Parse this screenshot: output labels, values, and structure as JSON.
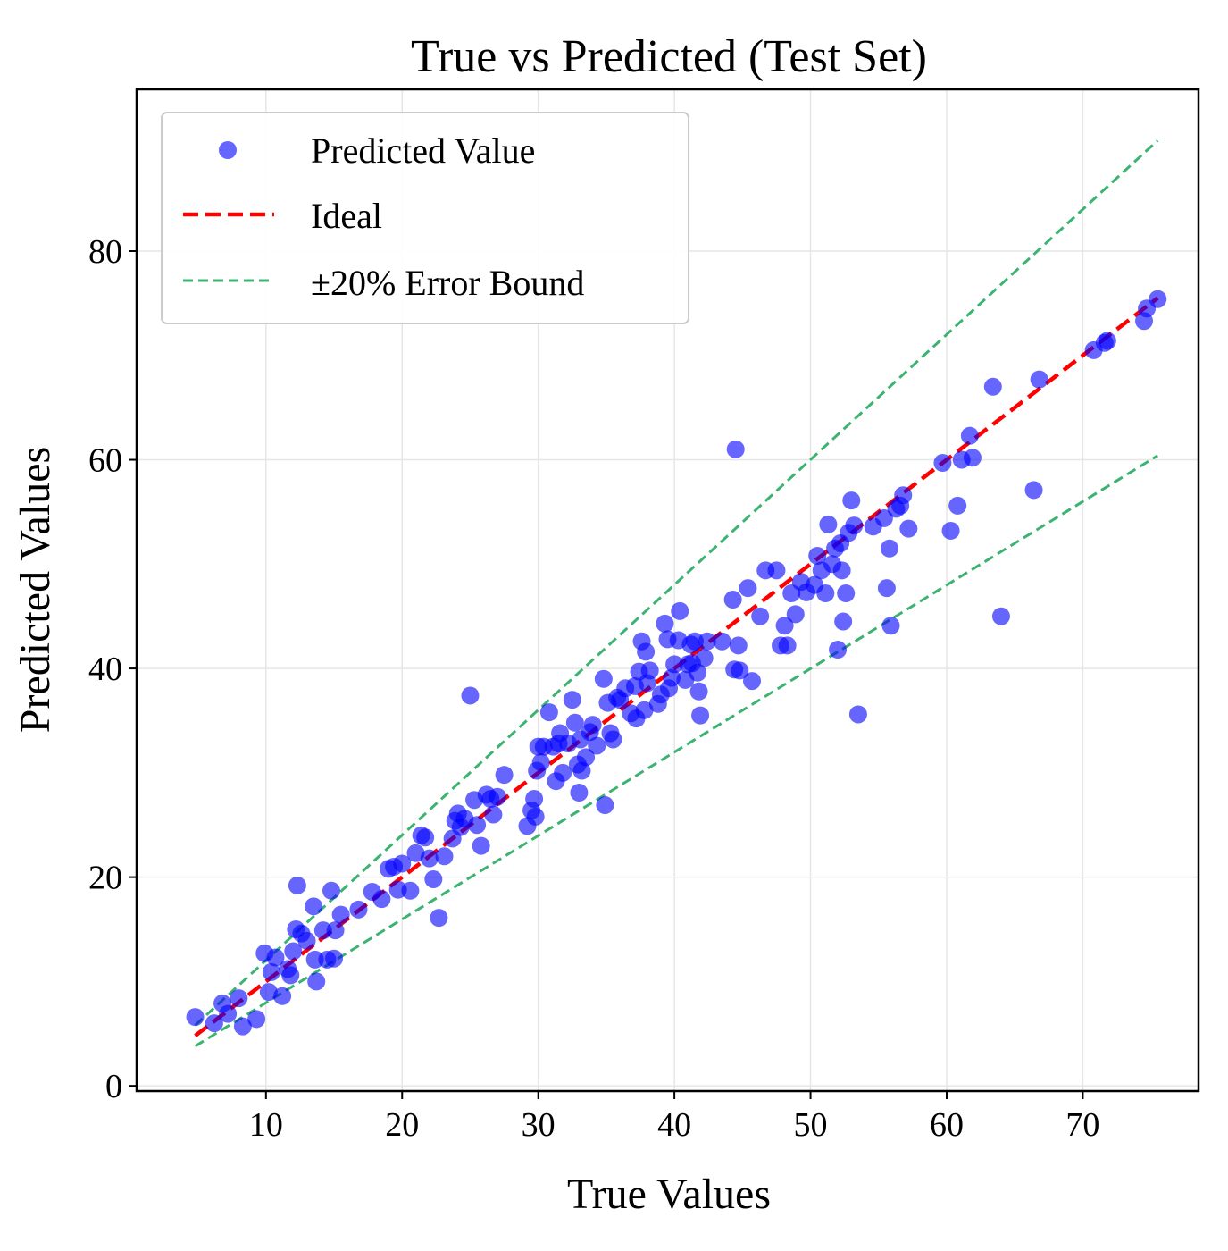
{
  "chart_data": {
    "type": "scatter",
    "title": "True vs Predicted (Test Set)",
    "xlabel": "True Values",
    "ylabel": "Predicted Values",
    "xlim": [
      0.5,
      78.5
    ],
    "ylim": [
      -0.5,
      95.5
    ],
    "xticks": [
      10,
      20,
      30,
      40,
      50,
      60,
      70
    ],
    "yticks": [
      0,
      20,
      40,
      60,
      80
    ],
    "grid": true,
    "legend_position": "top-left",
    "legend": [
      "Predicted Value",
      "Ideal",
      "±20% Error Bound"
    ],
    "colors": {
      "points": "#0000ff",
      "ideal": "#ff0000",
      "bound": "#3cb371",
      "grid": "#e6e6e6"
    },
    "ideal_line": {
      "x": [
        4.8,
        75.5
      ],
      "y": [
        4.8,
        75.5
      ]
    },
    "upper_bound": {
      "x": [
        4.8,
        75.5
      ],
      "y": [
        5.8,
        90.6
      ]
    },
    "lower_bound": {
      "x": [
        4.8,
        75.5
      ],
      "y": [
        3.8,
        60.4
      ]
    },
    "series": [
      {
        "name": "Predicted Value",
        "points": [
          [
            4.8,
            6.6
          ],
          [
            6.2,
            6.0
          ],
          [
            6.8,
            7.9
          ],
          [
            7.2,
            6.9
          ],
          [
            8.0,
            8.4
          ],
          [
            8.3,
            5.7
          ],
          [
            9.3,
            6.4
          ],
          [
            9.9,
            12.7
          ],
          [
            10.2,
            9.0
          ],
          [
            10.4,
            10.9
          ],
          [
            10.7,
            12.3
          ],
          [
            11.2,
            8.6
          ],
          [
            11.6,
            11.2
          ],
          [
            11.8,
            10.6
          ],
          [
            12.0,
            12.9
          ],
          [
            12.2,
            15.0
          ],
          [
            12.3,
            19.2
          ],
          [
            12.6,
            14.6
          ],
          [
            13.0,
            13.9
          ],
          [
            13.5,
            17.2
          ],
          [
            13.6,
            12.1
          ],
          [
            13.7,
            10.0
          ],
          [
            14.2,
            14.9
          ],
          [
            14.5,
            12.1
          ],
          [
            14.8,
            18.7
          ],
          [
            15.0,
            12.2
          ],
          [
            15.1,
            14.9
          ],
          [
            15.5,
            16.4
          ],
          [
            16.8,
            16.9
          ],
          [
            17.8,
            18.6
          ],
          [
            18.5,
            17.9
          ],
          [
            19.0,
            20.8
          ],
          [
            19.4,
            21.0
          ],
          [
            19.7,
            18.8
          ],
          [
            20.0,
            21.3
          ],
          [
            20.6,
            18.7
          ],
          [
            21.0,
            22.3
          ],
          [
            21.4,
            24.0
          ],
          [
            21.7,
            23.8
          ],
          [
            22.0,
            21.8
          ],
          [
            22.3,
            19.8
          ],
          [
            22.7,
            16.1
          ],
          [
            23.1,
            22.0
          ],
          [
            23.7,
            23.7
          ],
          [
            23.9,
            25.4
          ],
          [
            24.1,
            26.1
          ],
          [
            24.3,
            24.8
          ],
          [
            24.6,
            25.6
          ],
          [
            25.0,
            37.4
          ],
          [
            25.3,
            27.4
          ],
          [
            25.5,
            25.0
          ],
          [
            25.8,
            23.0
          ],
          [
            26.2,
            27.9
          ],
          [
            26.5,
            27.5
          ],
          [
            26.7,
            26.0
          ],
          [
            27.0,
            27.7
          ],
          [
            27.5,
            29.8
          ],
          [
            29.2,
            24.9
          ],
          [
            29.5,
            26.4
          ],
          [
            29.7,
            27.5
          ],
          [
            29.8,
            25.8
          ],
          [
            29.9,
            30.2
          ],
          [
            30.0,
            32.5
          ],
          [
            30.2,
            31.0
          ],
          [
            30.4,
            32.5
          ],
          [
            30.8,
            35.8
          ],
          [
            31.1,
            32.5
          ],
          [
            31.3,
            29.2
          ],
          [
            31.5,
            32.8
          ],
          [
            31.6,
            33.8
          ],
          [
            31.8,
            30.0
          ],
          [
            32.2,
            32.8
          ],
          [
            32.5,
            37.0
          ],
          [
            32.7,
            34.8
          ],
          [
            32.9,
            30.8
          ],
          [
            33.0,
            28.1
          ],
          [
            33.1,
            33.2
          ],
          [
            33.2,
            30.2
          ],
          [
            33.5,
            31.5
          ],
          [
            33.8,
            33.9
          ],
          [
            34.0,
            34.6
          ],
          [
            34.3,
            32.6
          ],
          [
            34.8,
            39.0
          ],
          [
            34.9,
            26.9
          ],
          [
            35.1,
            36.7
          ],
          [
            35.3,
            33.8
          ],
          [
            35.5,
            33.2
          ],
          [
            35.8,
            37.2
          ],
          [
            36.0,
            37.0
          ],
          [
            36.4,
            38.1
          ],
          [
            36.8,
            35.7
          ],
          [
            37.1,
            38.3
          ],
          [
            37.2,
            35.2
          ],
          [
            37.4,
            39.7
          ],
          [
            37.6,
            42.6
          ],
          [
            37.8,
            36.0
          ],
          [
            37.9,
            41.6
          ],
          [
            38.0,
            38.6
          ],
          [
            38.2,
            39.8
          ],
          [
            38.8,
            36.6
          ],
          [
            39.0,
            37.5
          ],
          [
            39.3,
            44.3
          ],
          [
            39.5,
            42.8
          ],
          [
            39.6,
            38.1
          ],
          [
            39.8,
            39.1
          ],
          [
            40.0,
            40.4
          ],
          [
            40.3,
            42.7
          ],
          [
            40.4,
            45.5
          ],
          [
            40.8,
            38.9
          ],
          [
            41.0,
            40.4
          ],
          [
            41.2,
            42.3
          ],
          [
            41.3,
            40.5
          ],
          [
            41.5,
            42.6
          ],
          [
            41.7,
            39.6
          ],
          [
            41.8,
            37.8
          ],
          [
            41.9,
            35.5
          ],
          [
            42.2,
            41.0
          ],
          [
            42.4,
            42.6
          ],
          [
            43.5,
            42.6
          ],
          [
            44.3,
            46.6
          ],
          [
            44.4,
            39.9
          ],
          [
            44.5,
            61.0
          ],
          [
            44.7,
            42.2
          ],
          [
            44.8,
            39.8
          ],
          [
            45.4,
            47.7
          ],
          [
            45.7,
            38.8
          ],
          [
            46.3,
            45.0
          ],
          [
            46.7,
            49.4
          ],
          [
            47.5,
            49.4
          ],
          [
            47.8,
            42.2
          ],
          [
            48.1,
            44.1
          ],
          [
            48.3,
            42.2
          ],
          [
            48.6,
            47.2
          ],
          [
            48.9,
            45.2
          ],
          [
            49.3,
            48.3
          ],
          [
            49.7,
            47.3
          ],
          [
            50.3,
            48.0
          ],
          [
            50.5,
            50.8
          ],
          [
            50.8,
            49.4
          ],
          [
            51.1,
            47.2
          ],
          [
            51.3,
            53.8
          ],
          [
            51.6,
            50.0
          ],
          [
            51.8,
            51.5
          ],
          [
            52.0,
            41.8
          ],
          [
            52.2,
            52.0
          ],
          [
            52.3,
            49.4
          ],
          [
            52.4,
            44.5
          ],
          [
            52.6,
            47.2
          ],
          [
            52.8,
            53.0
          ],
          [
            53.0,
            56.1
          ],
          [
            53.2,
            53.7
          ],
          [
            53.5,
            35.6
          ],
          [
            54.6,
            53.6
          ],
          [
            55.4,
            54.4
          ],
          [
            55.6,
            47.7
          ],
          [
            55.9,
            44.1
          ],
          [
            55.8,
            51.5
          ],
          [
            56.3,
            55.3
          ],
          [
            56.6,
            55.6
          ],
          [
            56.8,
            56.6
          ],
          [
            57.2,
            53.4
          ],
          [
            59.7,
            59.7
          ],
          [
            60.3,
            53.2
          ],
          [
            60.8,
            55.6
          ],
          [
            61.1,
            60.0
          ],
          [
            61.7,
            62.3
          ],
          [
            61.9,
            60.2
          ],
          [
            63.4,
            67.0
          ],
          [
            64.0,
            45.0
          ],
          [
            66.4,
            57.1
          ],
          [
            66.8,
            67.7
          ],
          [
            70.8,
            70.5
          ],
          [
            71.6,
            71.2
          ],
          [
            71.8,
            71.4
          ],
          [
            74.5,
            73.3
          ],
          [
            74.7,
            74.5
          ],
          [
            75.5,
            75.4
          ]
        ]
      }
    ]
  }
}
